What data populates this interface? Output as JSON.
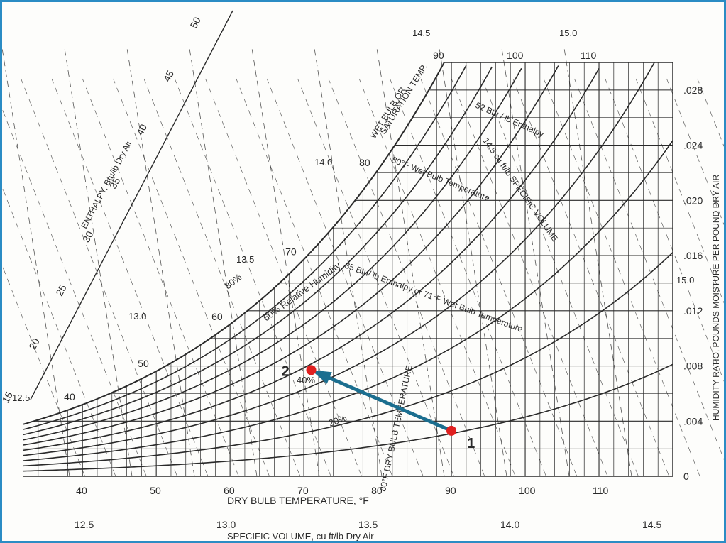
{
  "chart_data": {
    "type": "psychrometric",
    "colors": {
      "frame": "#2b8cc4",
      "grid": "#2a2a2a",
      "point": "#e02020",
      "arrow": "#1b6e8f"
    },
    "x_axis": {
      "label": "DRY BULB TEMPERATURE, °F",
      "ticks": [
        "40",
        "50",
        "60",
        "70",
        "80",
        "90",
        "100",
        "110"
      ],
      "range": [
        32,
        120
      ]
    },
    "y_axis": {
      "label": "HUMIDITY RATIO, POUNDS MOISTURE PER POUND DRY AIR",
      "ticks": [
        "0",
        ".004",
        ".008",
        ".012",
        ".016",
        ".020",
        ".024",
        ".028"
      ],
      "range": [
        0,
        0.03
      ]
    },
    "enthalpy_scale": {
      "label": "ENTHALPY, Btu/lb Dry Air",
      "ticks": [
        "15",
        "20",
        "25",
        "30",
        "35",
        "40",
        "45",
        "50"
      ]
    },
    "specific_volume_scale": {
      "label": "SPECIFIC VOLUME, cu ft/lb Dry Air",
      "bottom_ticks": [
        "12.5",
        "13.0",
        "13.5",
        "14.0",
        "14.5"
      ],
      "chart_ticks": [
        "12.5",
        "13.0",
        "13.5",
        "14.0",
        "14.5",
        "15.0",
        "15.0"
      ]
    },
    "wet_bulb_ticks": [
      "40",
      "50",
      "60",
      "70",
      "80",
      "90",
      "100",
      "110"
    ],
    "saturation_label": "WET BULB OR\nSATURATION TEMP.",
    "rh_labels": [
      "80%",
      "60% Relative Humidity",
      "40%",
      "20%"
    ],
    "annotations": [
      "52 Btu / lb Enthalpy",
      "80°F Wet Bulb Temperature",
      "14.5 cu ft/lb SPECIFIC VOLUME",
      "35 Btu/ lb Enthalpy or 71°F Wet Bulb Temperature",
      "80°F DRY BULB TEMPERATURE"
    ],
    "points": [
      {
        "label": "1",
        "dry_bulb": 90,
        "humidity_ratio": 0.0033
      },
      {
        "label": "2",
        "dry_bulb": 71,
        "humidity_ratio": 0.0077
      }
    ],
    "process": {
      "from": "1",
      "to": "2"
    }
  }
}
